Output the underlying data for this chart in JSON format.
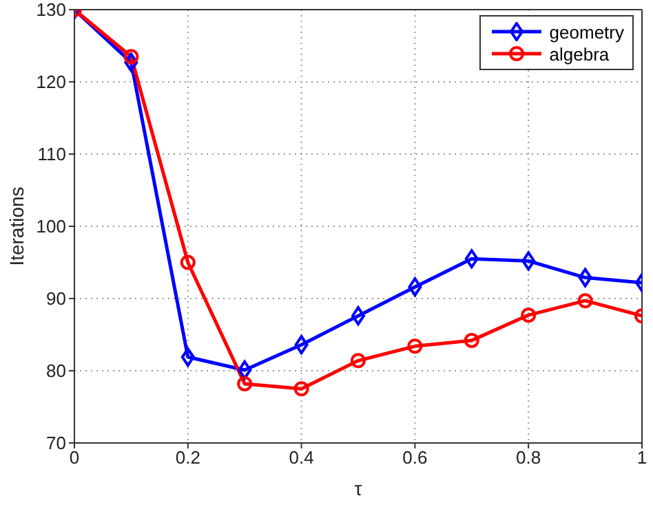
{
  "chart_data": {
    "type": "line",
    "xlabel": "τ",
    "ylabel": "Iterations",
    "x": [
      0,
      0.1,
      0.2,
      0.3,
      0.4,
      0.5,
      0.6,
      0.7,
      0.8,
      0.9,
      1
    ],
    "series": [
      {
        "name": "geometry",
        "color": "#0000ff",
        "marker": "diamond",
        "values": [
          130,
          122.7,
          81.9,
          80.1,
          83.6,
          87.6,
          91.6,
          95.5,
          95.2,
          92.9,
          92.2
        ]
      },
      {
        "name": "algebra",
        "color": "#ff0000",
        "marker": "circle",
        "values": [
          130,
          123.5,
          95,
          78.2,
          77.5,
          81.4,
          83.4,
          84.2,
          87.7,
          89.7,
          87.6
        ]
      }
    ],
    "xlim": [
      0,
      1
    ],
    "xticks": [
      0,
      0.2,
      0.4,
      0.6,
      0.8,
      1
    ],
    "ylim": [
      70,
      130
    ],
    "yticks": [
      70,
      80,
      90,
      100,
      110,
      120,
      130
    ],
    "grid": true,
    "legend": "top right",
    "line_style": "solid"
  }
}
